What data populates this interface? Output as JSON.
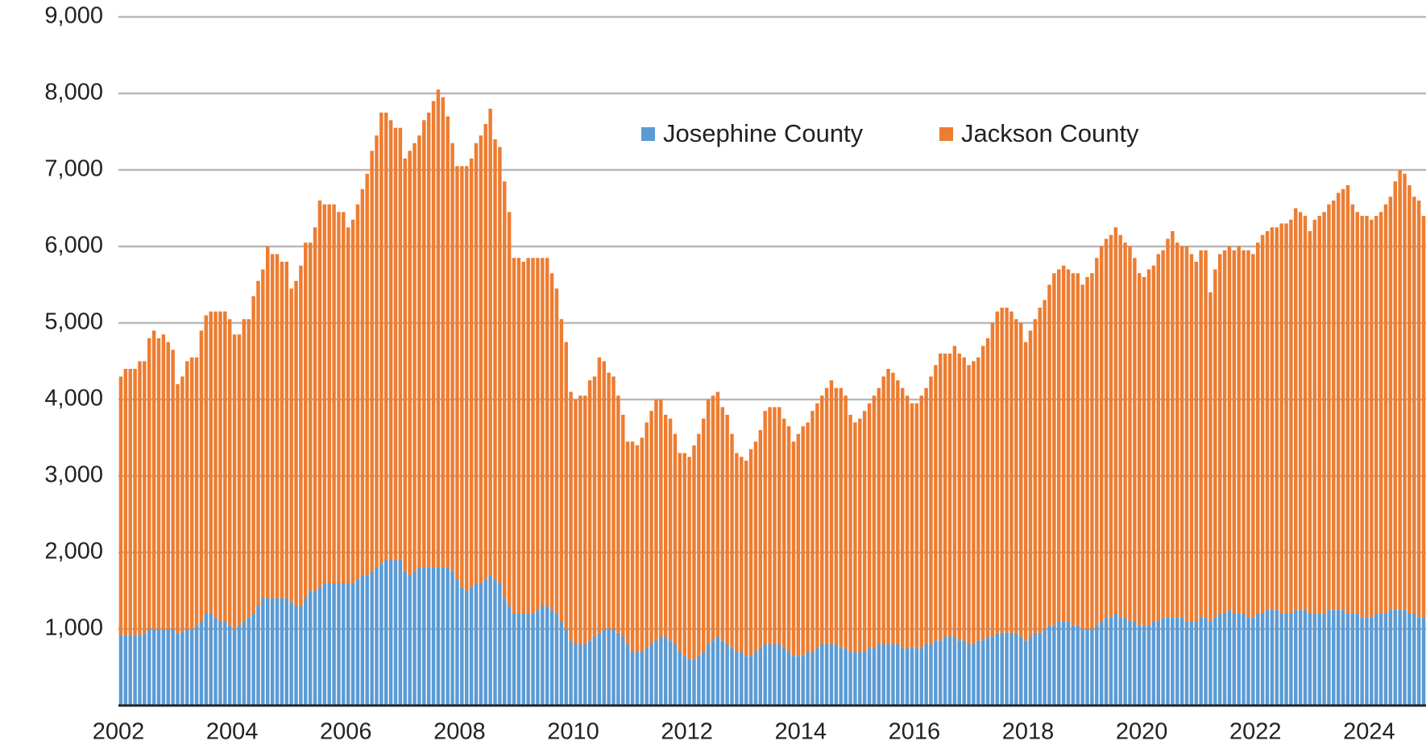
{
  "chart_data": {
    "type": "bar",
    "stacked": true,
    "categories": [
      "2002",
      null,
      null,
      null,
      null,
      null,
      null,
      null,
      null,
      null,
      null,
      null,
      null,
      null,
      null,
      null,
      null,
      null,
      null,
      null,
      null,
      null,
      null,
      null,
      "2004",
      null,
      null,
      null,
      null,
      null,
      null,
      null,
      null,
      null,
      null,
      null,
      null,
      null,
      null,
      null,
      null,
      null,
      null,
      null,
      null,
      null,
      null,
      null,
      "2006",
      null,
      null,
      null,
      null,
      null,
      null,
      null,
      null,
      null,
      null,
      null,
      null,
      null,
      null,
      null,
      null,
      null,
      null,
      null,
      null,
      null,
      null,
      null,
      "2008",
      null,
      null,
      null,
      null,
      null,
      null,
      null,
      null,
      null,
      null,
      null,
      null,
      null,
      null,
      null,
      null,
      null,
      null,
      null,
      null,
      null,
      null,
      null,
      "2010",
      null,
      null,
      null,
      null,
      null,
      null,
      null,
      null,
      null,
      null,
      null,
      null,
      null,
      null,
      null,
      null,
      null,
      null,
      null,
      null,
      null,
      null,
      null,
      "2012",
      null,
      null,
      null,
      null,
      null,
      null,
      null,
      null,
      null,
      null,
      null,
      null,
      null,
      null,
      null,
      null,
      null,
      null,
      null,
      null,
      null,
      null,
      null,
      "2014",
      null,
      null,
      null,
      null,
      null,
      null,
      null,
      null,
      null,
      null,
      null,
      null,
      null,
      null,
      null,
      null,
      null,
      null,
      null,
      null,
      null,
      null,
      null,
      "2016",
      null,
      null,
      null,
      null,
      null,
      null,
      null,
      null,
      null,
      null,
      null,
      null,
      null,
      null,
      null,
      null,
      null,
      null,
      null,
      null,
      null,
      null,
      null,
      "2018",
      null,
      null,
      null,
      null,
      null,
      null,
      null,
      null,
      null,
      null,
      null,
      null,
      null,
      null,
      null,
      null,
      null,
      null,
      null,
      null,
      null,
      null,
      null,
      "2020",
      null,
      null,
      null,
      null,
      null,
      null,
      null,
      null,
      null,
      null,
      null,
      null,
      null,
      null,
      null,
      null,
      null,
      null,
      null,
      null,
      null,
      null,
      null,
      "2022",
      null,
      null,
      null,
      null,
      null,
      null,
      null,
      null,
      null,
      null,
      null,
      null,
      null,
      null,
      null,
      null,
      null,
      null,
      null,
      null,
      null,
      null,
      null,
      "2024",
      null,
      null,
      null,
      null,
      null,
      null,
      null,
      null,
      null,
      null,
      null
    ],
    "series": [
      {
        "name": "Josephine County",
        "color": "#5b9bd5",
        "values": [
          920,
          920,
          920,
          920,
          920,
          950,
          1000,
          1000,
          1000,
          1000,
          1000,
          1000,
          940,
          960,
          1000,
          1000,
          1050,
          1100,
          1200,
          1200,
          1150,
          1100,
          1100,
          1050,
          1000,
          1050,
          1100,
          1150,
          1200,
          1300,
          1400,
          1400,
          1400,
          1400,
          1400,
          1400,
          1350,
          1300,
          1300,
          1400,
          1500,
          1500,
          1550,
          1600,
          1600,
          1600,
          1600,
          1600,
          1600,
          1600,
          1650,
          1700,
          1700,
          1750,
          1800,
          1850,
          1900,
          1900,
          1900,
          1900,
          1750,
          1700,
          1750,
          1800,
          1800,
          1800,
          1800,
          1800,
          1800,
          1800,
          1750,
          1650,
          1550,
          1500,
          1550,
          1600,
          1600,
          1650,
          1700,
          1650,
          1600,
          1400,
          1300,
          1200,
          1200,
          1200,
          1200,
          1200,
          1250,
          1300,
          1300,
          1250,
          1200,
          1100,
          1000,
          850,
          800,
          800,
          800,
          850,
          900,
          950,
          1000,
          1000,
          1000,
          950,
          900,
          800,
          700,
          700,
          700,
          750,
          800,
          850,
          900,
          900,
          850,
          800,
          700,
          650,
          600,
          600,
          650,
          700,
          800,
          850,
          900,
          850,
          800,
          750,
          700,
          700,
          650,
          650,
          700,
          750,
          800,
          800,
          800,
          800,
          750,
          700,
          650,
          650,
          650,
          700,
          700,
          750,
          800,
          800,
          800,
          800,
          750,
          750,
          700,
          700,
          700,
          700,
          750,
          750,
          800,
          800,
          800,
          800,
          800,
          750,
          750,
          750,
          750,
          750,
          800,
          800,
          850,
          850,
          900,
          900,
          900,
          850,
          850,
          800,
          800,
          850,
          850,
          900,
          900,
          950,
          950,
          950,
          950,
          950,
          900,
          850,
          900,
          950,
          950,
          1000,
          1050,
          1050,
          1100,
          1100,
          1100,
          1050,
          1050,
          1000,
          1000,
          1000,
          1050,
          1100,
          1150,
          1150,
          1200,
          1150,
          1150,
          1100,
          1100,
          1050,
          1050,
          1050,
          1100,
          1100,
          1150,
          1150,
          1150,
          1150,
          1150,
          1100,
          1100,
          1100,
          1150,
          1150,
          1100,
          1150,
          1200,
          1200,
          1250,
          1200,
          1200,
          1200,
          1150,
          1150,
          1200,
          1200,
          1250,
          1250,
          1250,
          1200,
          1200,
          1200,
          1250,
          1250,
          1250,
          1200,
          1200,
          1200,
          1200,
          1250,
          1250,
          1250,
          1250,
          1200,
          1200,
          1200,
          1150,
          1150,
          1150,
          1200,
          1200,
          1200,
          1250,
          1250,
          1250,
          1250,
          1200,
          1200,
          1150,
          1150
        ]
      },
      {
        "name": "Jackson County",
        "color": "#ed7d31",
        "values": [
          3380,
          3480,
          3480,
          3480,
          3580,
          3550,
          3800,
          3900,
          3800,
          3850,
          3750,
          3650,
          3260,
          3340,
          3500,
          3550,
          3500,
          3800,
          3900,
          3950,
          4000,
          4050,
          4050,
          4000,
          3850,
          3800,
          3950,
          3900,
          4150,
          4250,
          4300,
          4600,
          4500,
          4500,
          4400,
          4400,
          4100,
          4250,
          4450,
          4650,
          4550,
          4750,
          5050,
          4950,
          4950,
          4950,
          4850,
          4850,
          4650,
          4750,
          4900,
          5050,
          5250,
          5500,
          5650,
          5900,
          5850,
          5750,
          5650,
          5650,
          5400,
          5550,
          5600,
          5650,
          5850,
          5950,
          6100,
          6250,
          6150,
          5900,
          5600,
          5400,
          5500,
          5550,
          5600,
          5750,
          5850,
          5950,
          6100,
          5750,
          5700,
          5450,
          5150,
          4650,
          4650,
          4600,
          4650,
          4650,
          4600,
          4550,
          4550,
          4400,
          4250,
          3950,
          3750,
          3250,
          3200,
          3250,
          3250,
          3400,
          3400,
          3600,
          3500,
          3350,
          3300,
          3100,
          2900,
          2650,
          2750,
          2700,
          2800,
          2950,
          3050,
          3150,
          3100,
          2900,
          2900,
          2750,
          2600,
          2650,
          2650,
          2800,
          2900,
          3050,
          3200,
          3200,
          3200,
          3050,
          3000,
          2800,
          2600,
          2550,
          2550,
          2700,
          2750,
          2850,
          3050,
          3100,
          3100,
          3100,
          3000,
          2950,
          2800,
          2900,
          3000,
          3000,
          3150,
          3200,
          3250,
          3350,
          3450,
          3350,
          3400,
          3300,
          3100,
          3000,
          3050,
          3150,
          3200,
          3300,
          3350,
          3500,
          3600,
          3550,
          3450,
          3400,
          3300,
          3200,
          3200,
          3300,
          3350,
          3500,
          3600,
          3750,
          3700,
          3700,
          3800,
          3750,
          3700,
          3650,
          3700,
          3700,
          3850,
          3900,
          4100,
          4200,
          4250,
          4250,
          4200,
          4100,
          4100,
          3900,
          4000,
          4100,
          4250,
          4300,
          4450,
          4600,
          4600,
          4650,
          4600,
          4600,
          4600,
          4500,
          4600,
          4650,
          4800,
          4900,
          4950,
          5000,
          5050,
          5000,
          4900,
          4900,
          4750,
          4600,
          4550,
          4650,
          4650,
          4800,
          4800,
          4950,
          5050,
          4900,
          4850,
          4900,
          4800,
          4700,
          4800,
          4800,
          4300,
          4550,
          4700,
          4750,
          4750,
          4750,
          4800,
          4750,
          4800,
          4750,
          4850,
          4950,
          4950,
          5000,
          5000,
          5100,
          5100,
          5150,
          5250,
          5200,
          5150,
          5000,
          5150,
          5200,
          5250,
          5300,
          5350,
          5450,
          5500,
          5600,
          5350,
          5250,
          5250,
          5250,
          5200,
          5200,
          5250,
          5350,
          5400,
          5600,
          5750,
          5700,
          5600,
          5450,
          5450,
          5250
        ]
      }
    ],
    "ylim": [
      0,
      9000
    ],
    "yticks": [
      {
        "value": 1000,
        "label": "1,000"
      },
      {
        "value": 2000,
        "label": "2,000"
      },
      {
        "value": 3000,
        "label": "3,000"
      },
      {
        "value": 4000,
        "label": "4,000"
      },
      {
        "value": 5000,
        "label": "5,000"
      },
      {
        "value": 6000,
        "label": "6,000"
      },
      {
        "value": 7000,
        "label": "7,000"
      },
      {
        "value": 8000,
        "label": "8,000"
      },
      {
        "value": 9000,
        "label": "9,000"
      }
    ],
    "grid": true,
    "legend": "top"
  }
}
